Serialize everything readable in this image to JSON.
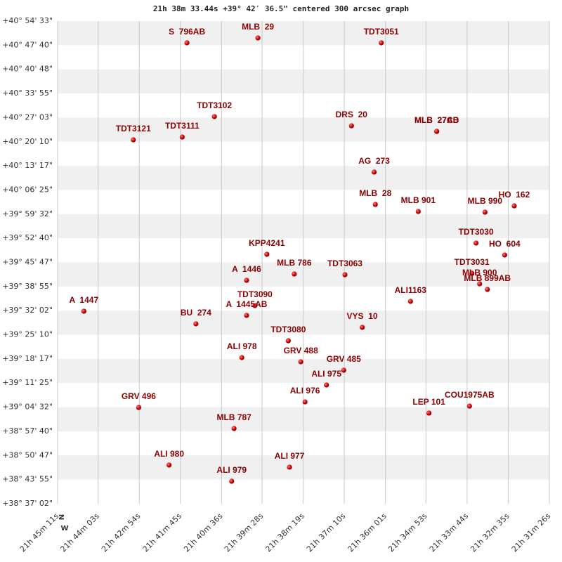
{
  "chart_data": {
    "type": "scatter",
    "title": "21h 38m 33.44s +39° 42′ 36.5\" centered 300 arcsec graph",
    "annotations": [
      "N",
      "W"
    ],
    "color": "#c00000",
    "label_color": "#8b0000",
    "grid": true,
    "labels": [
      "S  796AB",
      "MLB  29",
      "TDT3051",
      "TDT3102",
      "DRS  20",
      "MLB  27AB",
      "MLB  27CD",
      "TDT3121",
      "TDT3111",
      "AG  273",
      "MLB  28",
      "MLB 901",
      "MLB 990",
      "HO  162",
      "TDT3030",
      "HO  604",
      "KPP4241",
      "A  1446",
      "MLB 786",
      "TDT3063",
      "TDT3031",
      "MLB 900",
      "MLB 899AB",
      "ALI1163",
      "A  1447",
      "TDT3090",
      "A  1445AB",
      "BU  274",
      "VYS  10",
      "TDT3080",
      "ALI 978",
      "GRV 488",
      "GRV 485",
      "ALI 975",
      "ALI 976",
      "GRV 496",
      "COU1975AB",
      "LEP 101",
      "MLB 787",
      "ALI 980",
      "ALI 977",
      "ALI 979"
    ],
    "x": [
      78094,
      77975,
      77768,
      78048,
      77818,
      77675,
      77675,
      78184,
      78102,
      77780,
      77778,
      77706,
      77594,
      77545,
      77609,
      77561,
      77960,
      77994,
      77914,
      77829,
      77616,
      77603,
      77590,
      77719,
      78267,
      77980,
      77994,
      78079,
      77800,
      77924,
      78002,
      77903,
      77831,
      77860,
      77896,
      78175,
      77620,
      77688,
      78015,
      78124,
      77922,
      78019
    ],
    "values": [
      146901,
      146985,
      146901,
      145640,
      145483,
      145387,
      145387,
      145243,
      145291,
      144691,
      144138,
      144018,
      144006,
      144114,
      143478,
      143274,
      143286,
      142841,
      142949,
      142937,
      142961,
      142781,
      142685,
      142481,
      142313,
      142409,
      142241,
      142097,
      142037,
      141808,
      141520,
      141448,
      141304,
      141052,
      140763,
      140667,
      140691,
      140571,
      140307,
      139683,
      139647,
      139406
    ],
    "xlim": [
      78311,
      77486
    ],
    "xticks": [
      {
        "value": 78311,
        "label": "21h 45m 11s"
      },
      {
        "value": 78243,
        "label": "21h 44m 03s"
      },
      {
        "value": 78174,
        "label": "21h 42m 54s"
      },
      {
        "value": 78105,
        "label": "21h 41m 45s"
      },
      {
        "value": 78036,
        "label": "21h 40m 36s"
      },
      {
        "value": 77968,
        "label": "21h 39m 28s"
      },
      {
        "value": 77899,
        "label": "21h 38m 19s"
      },
      {
        "value": 77830,
        "label": "21h 37m 10s"
      },
      {
        "value": 77761,
        "label": "21h 36m 01s"
      },
      {
        "value": 77693,
        "label": "21h 34m 53s"
      },
      {
        "value": 77624,
        "label": "21h 33m 44s"
      },
      {
        "value": 77555,
        "label": "21h 32m 35s"
      },
      {
        "value": 77486,
        "label": "21h 31m 26s"
      }
    ],
    "ylim": [
      139022,
      147273
    ],
    "yticks": [
      {
        "value": 147273,
        "label": "+40° 54' 33\""
      },
      {
        "value": 146860,
        "label": "+40° 47' 40\""
      },
      {
        "value": 146448,
        "label": "+40° 40' 48\""
      },
      {
        "value": 146035,
        "label": "+40° 33' 55\""
      },
      {
        "value": 145623,
        "label": "+40° 27' 03\""
      },
      {
        "value": 145210,
        "label": "+40° 20' 10\""
      },
      {
        "value": 144797,
        "label": "+40° 13' 17\""
      },
      {
        "value": 144385,
        "label": "+40° 06' 25\""
      },
      {
        "value": 143972,
        "label": "+39° 59' 32\""
      },
      {
        "value": 143560,
        "label": "+39° 52' 40\""
      },
      {
        "value": 143147,
        "label": "+39° 45' 47\""
      },
      {
        "value": 142735,
        "label": "+39° 38' 55\""
      },
      {
        "value": 142322,
        "label": "+39° 32' 02\""
      },
      {
        "value": 141910,
        "label": "+39° 25' 10\""
      },
      {
        "value": 141497,
        "label": "+39° 18' 17\""
      },
      {
        "value": 141085,
        "label": "+39° 11' 25\""
      },
      {
        "value": 140672,
        "label": "+39° 04' 32\""
      },
      {
        "value": 140260,
        "label": "+38° 57' 40\""
      },
      {
        "value": 139847,
        "label": "+38° 50' 47\""
      },
      {
        "value": 139435,
        "label": "+38° 43' 55\""
      },
      {
        "value": 139022,
        "label": "+38° 37' 02\""
      }
    ]
  }
}
